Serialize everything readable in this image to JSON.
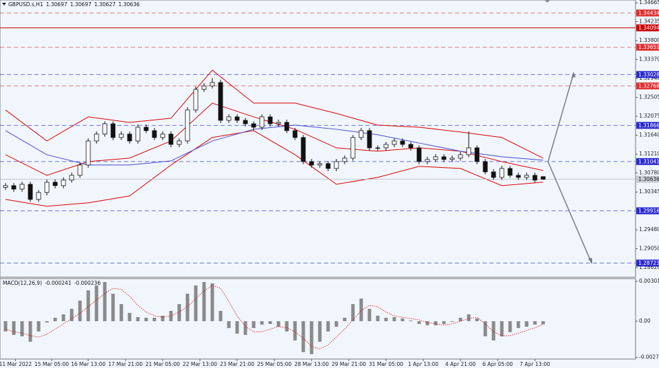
{
  "chart_data": [
    {
      "type": "candlestick",
      "title": "GBPUSD.s,H1",
      "open": [
        1.3045,
        1.30491,
        1.30412,
        1.30522,
        1.30177,
        1.30334,
        1.30569,
        1.30491,
        1.30617,
        1.30726,
        1.30962,
        1.31511,
        1.31668,
        1.31904,
        1.3159,
        1.31668,
        1.31511,
        1.31825,
        1.31747,
        1.3159,
        1.31668,
        1.31433,
        1.31511,
        1.32218,
        1.32689,
        1.32767,
        1.32846,
        1.31982,
        1.32061,
        1.31982,
        1.31904,
        1.31825,
        1.32061,
        1.31904,
        1.31935,
        1.31747,
        1.3159,
        1.3104,
        1.30962,
        1.30993,
        1.30883,
        1.3104,
        1.31119,
        1.3159,
        1.31747,
        1.31354,
        1.31354,
        1.31433,
        1.31511,
        1.31433,
        1.31354,
        1.3104,
        1.31088,
        1.3115,
        1.31088,
        1.31119,
        1.31197,
        1.31354,
        1.3104,
        1.30805,
        1.30679,
        1.30883,
        1.30726,
        1.30679,
        1.30726,
        1.30697
      ],
      "high": [
        1.3055,
        1.3055,
        1.3058,
        1.3058,
        1.3039,
        1.3063,
        1.3063,
        1.3068,
        1.3079,
        1.3102,
        1.3157,
        1.3173,
        1.3196,
        1.3196,
        1.3173,
        1.3173,
        1.3189,
        1.3189,
        1.3181,
        1.3173,
        1.3173,
        1.3157,
        1.3228,
        1.3275,
        1.3283,
        1.3295,
        1.3291,
        1.3212,
        1.3212,
        1.3204,
        1.3196,
        1.3212,
        1.3212,
        1.32,
        1.32,
        1.3181,
        1.3165,
        1.311,
        1.3105,
        1.3105,
        1.311,
        1.3118,
        1.3165,
        1.3181,
        1.3181,
        1.3141,
        1.3149,
        1.3157,
        1.3157,
        1.3149,
        1.3141,
        1.3115,
        1.3121,
        1.3121,
        1.3118,
        1.3126,
        1.3173,
        1.3141,
        1.311,
        1.3087,
        1.3094,
        1.3094,
        1.3079,
        1.3079,
        1.3079,
        1.30697
      ],
      "low": [
        1.3039,
        1.3035,
        1.3035,
        1.3012,
        1.3012,
        1.3027,
        1.3043,
        1.3043,
        1.3056,
        1.3067,
        1.309,
        1.3145,
        1.3161,
        1.3153,
        1.3153,
        1.3145,
        1.3145,
        1.3169,
        1.3153,
        1.3153,
        1.3137,
        1.3137,
        1.3145,
        1.3216,
        1.3263,
        1.3271,
        1.3192,
        1.3192,
        1.3192,
        1.3184,
        1.3176,
        1.3176,
        1.3184,
        1.3184,
        1.3169,
        1.3153,
        1.3098,
        1.309,
        1.309,
        1.3082,
        1.3082,
        1.3098,
        1.3106,
        1.3153,
        1.3129,
        1.3129,
        1.3129,
        1.3137,
        1.3137,
        1.3129,
        1.3098,
        1.3098,
        1.3103,
        1.3103,
        1.3103,
        1.3106,
        1.3114,
        1.3098,
        1.3075,
        1.3062,
        1.3062,
        1.3067,
        1.3062,
        1.3062,
        1.3056,
        1.30627
      ],
      "close": [
        1.30491,
        1.30412,
        1.30522,
        1.30177,
        1.30334,
        1.30569,
        1.30491,
        1.30617,
        1.30726,
        1.30962,
        1.31511,
        1.31668,
        1.31904,
        1.3159,
        1.31668,
        1.31511,
        1.31825,
        1.31747,
        1.3159,
        1.31668,
        1.31433,
        1.31511,
        1.32218,
        1.32689,
        1.32767,
        1.32846,
        1.31982,
        1.32061,
        1.31982,
        1.31904,
        1.31825,
        1.32061,
        1.31904,
        1.31935,
        1.31747,
        1.3159,
        1.3104,
        1.30962,
        1.30993,
        1.30883,
        1.3104,
        1.31119,
        1.3159,
        1.31747,
        1.31354,
        1.31354,
        1.31433,
        1.31511,
        1.31433,
        1.31354,
        1.3104,
        1.31088,
        1.3115,
        1.31088,
        1.31119,
        1.31197,
        1.31354,
        1.3104,
        1.30805,
        1.30679,
        1.30883,
        1.30726,
        1.30679,
        1.30726,
        1.30617,
        1.30636
      ],
      "series": [
        {
          "color": "#dd0000",
          "x": [
            0,
            5,
            10,
            15,
            20,
            25,
            30,
            35,
            40,
            45,
            50,
            55,
            60,
            65
          ],
          "values": [
            1.32218,
            1.31511,
            1.32061,
            1.31935,
            1.3203,
            1.33129,
            1.32375,
            1.32375,
            1.3214,
            1.31873,
            1.31825,
            1.31716,
            1.3159,
            1.31119
          ]
        },
        {
          "color": "#dd0000",
          "x": [
            0,
            5,
            10,
            15,
            20,
            25,
            30,
            35,
            40,
            45,
            50,
            55,
            60,
            65
          ],
          "values": [
            1.31197,
            1.30726,
            1.3104,
            1.31119,
            1.31511,
            1.32375,
            1.32061,
            1.31778,
            1.31354,
            1.31276,
            1.31354,
            1.31276,
            1.3104,
            1.30836
          ]
        },
        {
          "color": "#dd0000",
          "x": [
            0,
            5,
            10,
            15,
            20,
            25,
            30,
            35,
            40,
            45,
            50,
            55,
            60,
            65
          ],
          "values": [
            1.30177,
            1.3002,
            1.30099,
            1.30255,
            1.30962,
            1.3159,
            1.31747,
            1.31197,
            1.30522,
            1.30679,
            1.30931,
            1.30883,
            1.30491,
            1.30569
          ]
        },
        {
          "color": "#4848cc",
          "x": [
            0,
            5,
            10,
            15,
            20,
            25,
            30,
            35,
            40,
            45,
            50,
            55,
            60,
            65
          ],
          "values": [
            1.31747,
            1.31197,
            1.30962,
            1.30962,
            1.31056,
            1.31511,
            1.31778,
            1.31873,
            1.31778,
            1.31653,
            1.31464,
            1.31276,
            1.3115,
            1.31072
          ]
        }
      ],
      "levels": [
        {
          "value": 1.34434,
          "color": "#e03030",
          "dashed": true
        },
        {
          "value": 1.34094,
          "color": "#cc0000",
          "dashed": false
        },
        {
          "value": 1.33651,
          "color": "#e03030",
          "dashed": true
        },
        {
          "value": 1.33028,
          "color": "#2a2ad0",
          "dashed": true
        },
        {
          "value": 1.32768,
          "color": "#e03030",
          "dashed": true
        },
        {
          "value": 1.31866,
          "color": "#2a2ad0",
          "dashed": true
        },
        {
          "value": 1.31041,
          "color": "#2a2ad0",
          "dashed": true
        },
        {
          "value": 1.29916,
          "color": "#2a2ad0",
          "dashed": true
        },
        {
          "value": 1.28723,
          "color": "#2a2ad0",
          "dashed": true
        }
      ],
      "xlim": [
        -0.667,
        76.17
      ],
      "ylim": [
        1.284,
        1.3473
      ],
      "yticks": [
        1.34665,
        1.34235,
        {
          "value": 1.338,
          "label": "1.33800"
        },
        {
          "value": 1.3337,
          "label": "1.33370"
        },
        {
          "value": 1.3294,
          "label": "1.32940"
        },
        1.32505,
        1.32075,
        {
          "value": 1.3164,
          "label": "1.31640"
        },
        {
          "value": 1.3121,
          "label": "1.31210"
        },
        {
          "value": 1.3078,
          "label": "1.30780"
        },
        1.30345,
        {
          "value": 1.2948,
          "label": "1.29480"
        },
        {
          "value": 1.2905,
          "label": "1.29050"
        },
        {
          "value": 1.2862,
          "label": "1.28620"
        }
      ]
    },
    {
      "type": "macd",
      "title": "MACD(12,26,9)",
      "macd_value": -0.000241,
      "signal_value": -0.000236,
      "values": [
        -0.00078,
        -0.00104,
        -0.00115,
        -0.00156,
        -0.00078,
        -0.0001,
        0.00026,
        0.00052,
        0.00094,
        0.00156,
        0.00234,
        0.00271,
        0.00297,
        0.00208,
        0.0013,
        0.00063,
        0.00031,
        0.00026,
        0.00026,
        0.00042,
        0.00078,
        0.0013,
        0.00208,
        0.00271,
        0.00297,
        0.00287,
        0.00078,
        -0.00052,
        -0.00094,
        -0.00104,
        -0.00052,
        -0.00026,
        -0.00021,
        -0.00042,
        -0.00078,
        -0.00146,
        -0.00234,
        -0.0025,
        -0.00156,
        -0.00078,
        -0.00042,
        0.00026,
        0.0013,
        0.00172,
        0.00094,
        0.00042,
        0.00026,
        0.00031,
        0.00021,
        5e-05,
        -0.00021,
        -0.00031,
        -0.00031,
        -0.00021,
        -5e-05,
        0.00026,
        0.00052,
        0.00021,
        -0.00115,
        -0.00146,
        -0.00115,
        -0.00083,
        -0.00052,
        -0.00042,
        -0.00026,
        -0.00024
      ],
      "color": "#8a8a8a",
      "signal": [
        -0.0006,
        -0.0008,
        -0.0009,
        -0.0011,
        -0.0012,
        -0.001,
        -0.0006,
        -0.0002,
        0.0002,
        0.0006,
        0.0011,
        0.0016,
        0.0021,
        0.0025,
        0.0024,
        0.0019,
        0.0012,
        0.0007,
        0.0004,
        0.0003,
        0.0004,
        0.0007,
        0.0011,
        0.0017,
        0.0023,
        0.0027,
        0.0025,
        0.0015,
        0.0004,
        -0.0004,
        -0.0008,
        -0.0008,
        -0.0006,
        -0.0004,
        -0.0005,
        -0.0008,
        -0.0013,
        -0.0019,
        -0.0021,
        -0.0018,
        -0.0012,
        -0.0006,
        0.0001,
        0.0008,
        0.0012,
        0.0011,
        0.0007,
        0.0004,
        0.0003,
        0.0002,
        0.0001,
        -0.0001,
        -0.0002,
        -0.0003,
        -0.0002,
        0,
        0.0002,
        0.0003,
        -0.0002,
        -0.0008,
        -0.0011,
        -0.0011,
        -0.0009,
        -0.0007,
        -0.0005,
        -0.00024
      ],
      "signal_color": "#dd0000",
      "xlim": [
        -0.667,
        76.17
      ],
      "ylim": [
        -0.00287,
        0.00323
      ],
      "yticks": [
        0.003019,
        {
          "value": 0,
          "label": "0.00"
        },
        -0.00275
      ],
      "xticks": [
        {
          "value": 1.2,
          "label": "11 Mar 2022"
        },
        {
          "value": 5.58,
          "label": "15 Mar 05:00"
        },
        {
          "value": 10,
          "label": "16 Mar 13:00"
        },
        {
          "value": 14.5,
          "label": "17 Mar 21:00"
        },
        {
          "value": 19,
          "label": "21 Mar 05:00"
        },
        {
          "value": 23.5,
          "label": "22 Mar 13:00"
        },
        {
          "value": 28,
          "label": "23 Mar 21:00"
        },
        {
          "value": 32.5,
          "label": "25 Mar 05:00"
        },
        {
          "value": 37,
          "label": "28 Mar 13:00"
        },
        {
          "value": 41.5,
          "label": "29 Mar 21:00"
        },
        {
          "value": 46,
          "label": "31 Mar 05:00"
        },
        {
          "value": 50.5,
          "label": "1 Apr 13:00"
        },
        {
          "value": 55,
          "label": "4 Apr 21:00"
        },
        {
          "value": 59.5,
          "label": "6 Apr 05:00"
        },
        {
          "value": 64,
          "label": "7 Apr 13:00"
        }
      ]
    }
  ]
}
